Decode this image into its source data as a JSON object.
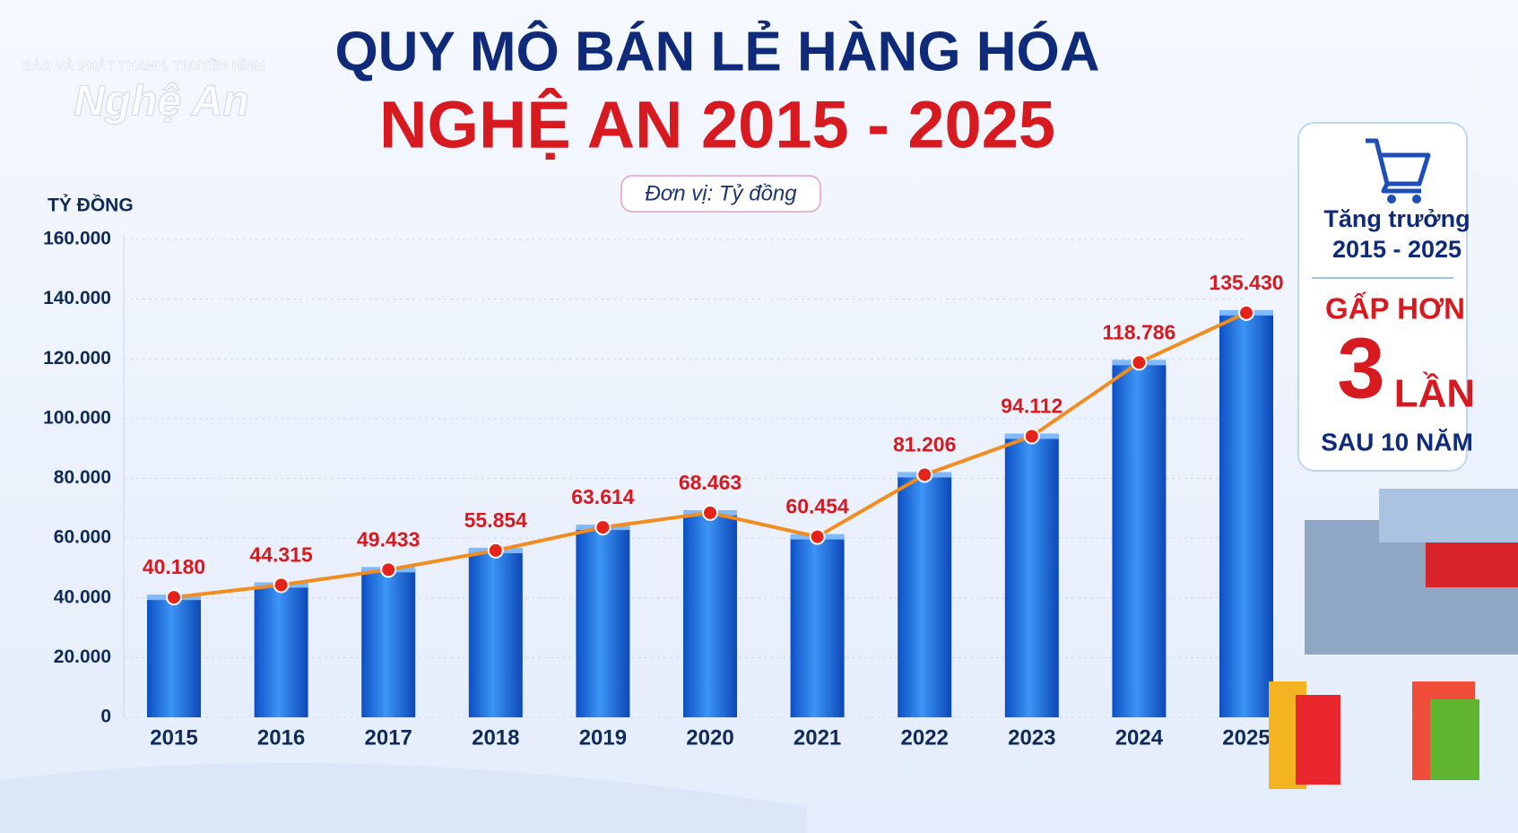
{
  "logo": {
    "top": "BÁO VÀ PHÁT THANH, TRUYỀN HÌNH",
    "name": "Nghệ An"
  },
  "chart_data": {
    "type": "bar",
    "title": "QUY MÔ BÁN LẺ HÀNG HÓA",
    "subtitle": "NGHỆ AN 2015 - 2025",
    "unit_note": "Đơn vị: Tỷ đồng",
    "y_label": "TỶ ĐỒNG",
    "categories": [
      "2015",
      "2016",
      "2017",
      "2018",
      "2019",
      "2020",
      "2021",
      "2022",
      "2023",
      "2024",
      "2025"
    ],
    "values": [
      40180,
      44315,
      49433,
      55854,
      63614,
      68463,
      60454,
      81206,
      94112,
      118786,
      135430
    ],
    "value_labels": [
      "40.180",
      "44.315",
      "49.433",
      "55.854",
      "63.614",
      "68.463",
      "60.454",
      "81.206",
      "94.112",
      "118.786",
      "135.430"
    ],
    "color": "#1f6fe0",
    "line_color": "#f28c1e",
    "marker_color": "#e5231b",
    "ylim": [
      0,
      160000
    ],
    "yticks": [
      0,
      {
        "value": 20000,
        "label": "20.000"
      },
      {
        "value": 40000,
        "label": "40.000"
      },
      {
        "value": 60000,
        "label": "60.000"
      },
      {
        "value": 80000,
        "label": "80.000"
      },
      {
        "value": 100000,
        "label": "100.000"
      },
      {
        "value": 120000,
        "label": "120.000"
      },
      {
        "value": 140000,
        "label": "140.000"
      },
      {
        "value": 160000,
        "label": "160.000"
      }
    ],
    "grid": true
  },
  "panel": {
    "heading1": "Tăng trưởng",
    "heading2": "2015 - 2025",
    "line1": "GẤP HƠN",
    "big": "3",
    "big_unit": "LẦN",
    "line3": "SAU 10 NĂM"
  }
}
